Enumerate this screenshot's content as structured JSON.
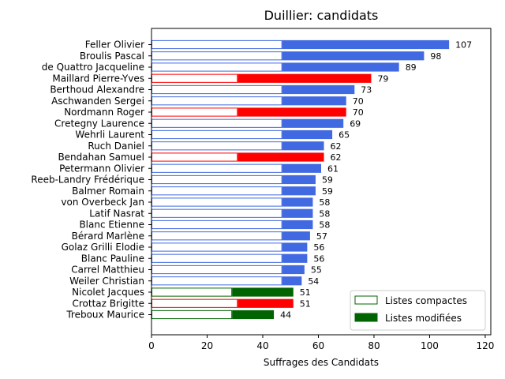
{
  "chart_data": {
    "type": "bar",
    "orientation": "horizontal",
    "title": "Duillier: candidats",
    "xlabel": "Suffrages des Candidats",
    "ylabel": "",
    "xlim": [
      0,
      122
    ],
    "xticks": [
      0,
      20,
      40,
      60,
      80,
      100,
      120
    ],
    "grid": false,
    "legend": {
      "placement": "lower-right",
      "entries": [
        {
          "label": "Listes compactes",
          "style": "outline",
          "color": "#006400"
        },
        {
          "label": "Listes modifiées",
          "style": "filled",
          "color": "#006400"
        }
      ]
    },
    "colors": {
      "blue": "#4169e1",
      "red": "#ff0000",
      "green": "#006400"
    },
    "candidates": [
      {
        "name": "Feller Olivier",
        "total": 107,
        "compact": 47,
        "color": "blue"
      },
      {
        "name": "Broulis Pascal",
        "total": 98,
        "compact": 47,
        "color": "blue"
      },
      {
        "name": "de Quattro Jacqueline",
        "total": 89,
        "compact": 47,
        "color": "blue"
      },
      {
        "name": "Maillard Pierre-Yves",
        "total": 79,
        "compact": 31,
        "color": "red"
      },
      {
        "name": "Berthoud Alexandre",
        "total": 73,
        "compact": 47,
        "color": "blue"
      },
      {
        "name": "Aschwanden Sergei",
        "total": 70,
        "compact": 47,
        "color": "blue"
      },
      {
        "name": "Nordmann Roger",
        "total": 70,
        "compact": 31,
        "color": "red"
      },
      {
        "name": "Cretegny Laurence",
        "total": 69,
        "compact": 47,
        "color": "blue"
      },
      {
        "name": "Wehrli Laurent",
        "total": 65,
        "compact": 47,
        "color": "blue"
      },
      {
        "name": "Ruch Daniel",
        "total": 62,
        "compact": 47,
        "color": "blue"
      },
      {
        "name": "Bendahan Samuel",
        "total": 62,
        "compact": 31,
        "color": "red"
      },
      {
        "name": "Petermann Olivier",
        "total": 61,
        "compact": 47,
        "color": "blue"
      },
      {
        "name": "Reeb-Landry Frédérique",
        "total": 59,
        "compact": 47,
        "color": "blue"
      },
      {
        "name": "Balmer Romain",
        "total": 59,
        "compact": 47,
        "color": "blue"
      },
      {
        "name": "von Overbeck Jan",
        "total": 58,
        "compact": 47,
        "color": "blue"
      },
      {
        "name": "Latif Nasrat",
        "total": 58,
        "compact": 47,
        "color": "blue"
      },
      {
        "name": "Blanc Etienne",
        "total": 58,
        "compact": 47,
        "color": "blue"
      },
      {
        "name": "Bérard Marlène",
        "total": 57,
        "compact": 47,
        "color": "blue"
      },
      {
        "name": "Golaz Grilli Elodie",
        "total": 56,
        "compact": 47,
        "color": "blue"
      },
      {
        "name": "Blanc Pauline",
        "total": 56,
        "compact": 47,
        "color": "blue"
      },
      {
        "name": "Carrel Matthieu",
        "total": 55,
        "compact": 47,
        "color": "blue"
      },
      {
        "name": "Weiler Christian",
        "total": 54,
        "compact": 47,
        "color": "blue"
      },
      {
        "name": "Nicolet Jacques",
        "total": 51,
        "compact": 29,
        "color": "green"
      },
      {
        "name": "Crottaz Brigitte",
        "total": 51,
        "compact": 31,
        "color": "red"
      },
      {
        "name": "Treboux Maurice",
        "total": 44,
        "compact": 29,
        "color": "green"
      }
    ]
  }
}
